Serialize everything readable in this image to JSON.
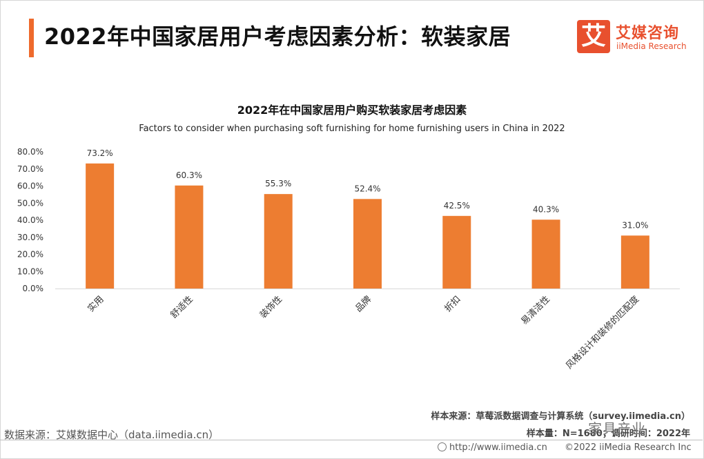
{
  "header": {
    "title": "2022年中国家居用户考虑因素分析：软装家居",
    "accent_color": "#ee6a2c"
  },
  "logo": {
    "mark": "艾",
    "cn": "艾媒咨询",
    "en": "iiMedia Research",
    "color": "#e8502e"
  },
  "chart_data": {
    "type": "bar",
    "title": "2022年在中国家居用户购买软装家居考虑因素",
    "subtitle": "Factors to consider when purchasing soft furnishing for home furnishing users in China in 2022",
    "categories": [
      "实用",
      "舒适性",
      "装饰性",
      "品牌",
      "折扣",
      "易清洁性",
      "风格设计和装修的匹配度"
    ],
    "values": [
      73.2,
      60.3,
      55.3,
      52.4,
      42.5,
      40.3,
      31.0
    ],
    "value_labels": [
      "73.2%",
      "60.3%",
      "55.3%",
      "52.4%",
      "42.5%",
      "40.3%",
      "31.0%"
    ],
    "yticks": [
      "0.0%",
      "10.0%",
      "20.0%",
      "30.0%",
      "40.0%",
      "50.0%",
      "60.0%",
      "70.0%",
      "80.0%"
    ],
    "ylim": [
      0,
      80
    ],
    "bar_color": "#ed7d31",
    "grid": false,
    "xlabel": "",
    "ylabel": ""
  },
  "notes": {
    "sample_source": "样本来源：草莓派数据调查与计算系统（survey.iimedia.cn）",
    "sample_size": "样本量：N=1680；调研时间：2022年"
  },
  "source": "数据来源：艾媒数据中心（data.iimedia.cn）",
  "watermark": "家具产业",
  "footer": {
    "url": "http://www.iimedia.cn",
    "copyright": "©2022  iiMedia Research  Inc"
  }
}
